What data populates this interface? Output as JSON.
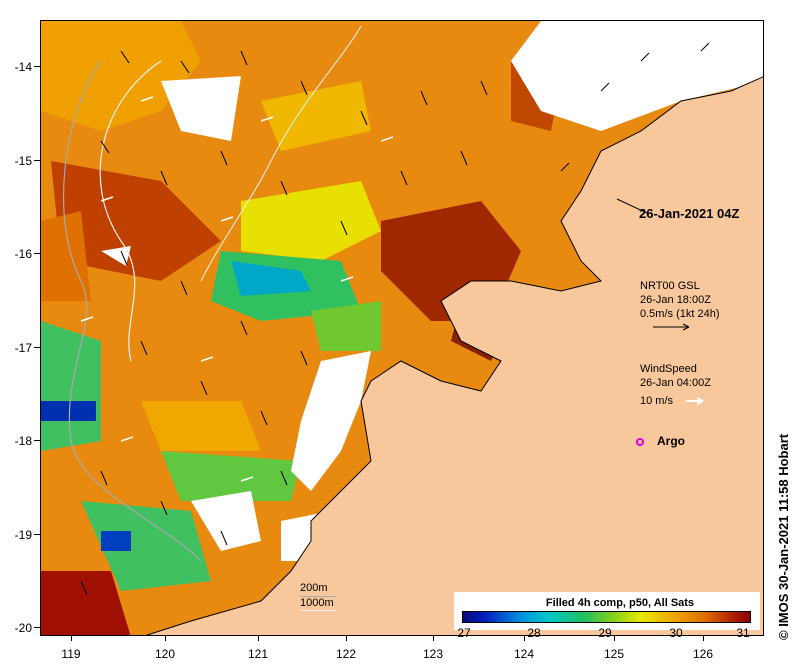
{
  "axes": {
    "y_ticks": [
      "-14",
      "-15",
      "-16",
      "-17",
      "-18",
      "-19",
      "-20"
    ],
    "x_ticks": [
      "119",
      "120",
      "121",
      "122",
      "123",
      "124",
      "125",
      "126"
    ]
  },
  "labels": {
    "timestamp": "26-Jan-2021 04Z",
    "current_title": "NRT00 GSL",
    "current_time": "26-Jan 18:00Z",
    "current_scale": "0.5m/s (1kt 24h)",
    "wind_title": "WindSpeed",
    "wind_time": "26-Jan 04:00Z",
    "wind_scale": "10 m/s",
    "argo_label": "Argo",
    "contour_200": "200m",
    "contour_1000": "1000m",
    "credit": "© IMOS 30-Jan-2021 11:58 Hobart"
  },
  "colorbar": {
    "title": "Filled 4h comp, p50, All Sats",
    "labels": [
      "27",
      "28",
      "29",
      "30",
      "31"
    ]
  },
  "colors": {
    "land": "#f8c89c",
    "sst_hot": "#880000",
    "sst_warm": "#e88800",
    "sst_mid": "#e8e800",
    "sst_cool": "#20c060",
    "sst_cold": "#08087a",
    "argo": "#e000e0"
  }
}
